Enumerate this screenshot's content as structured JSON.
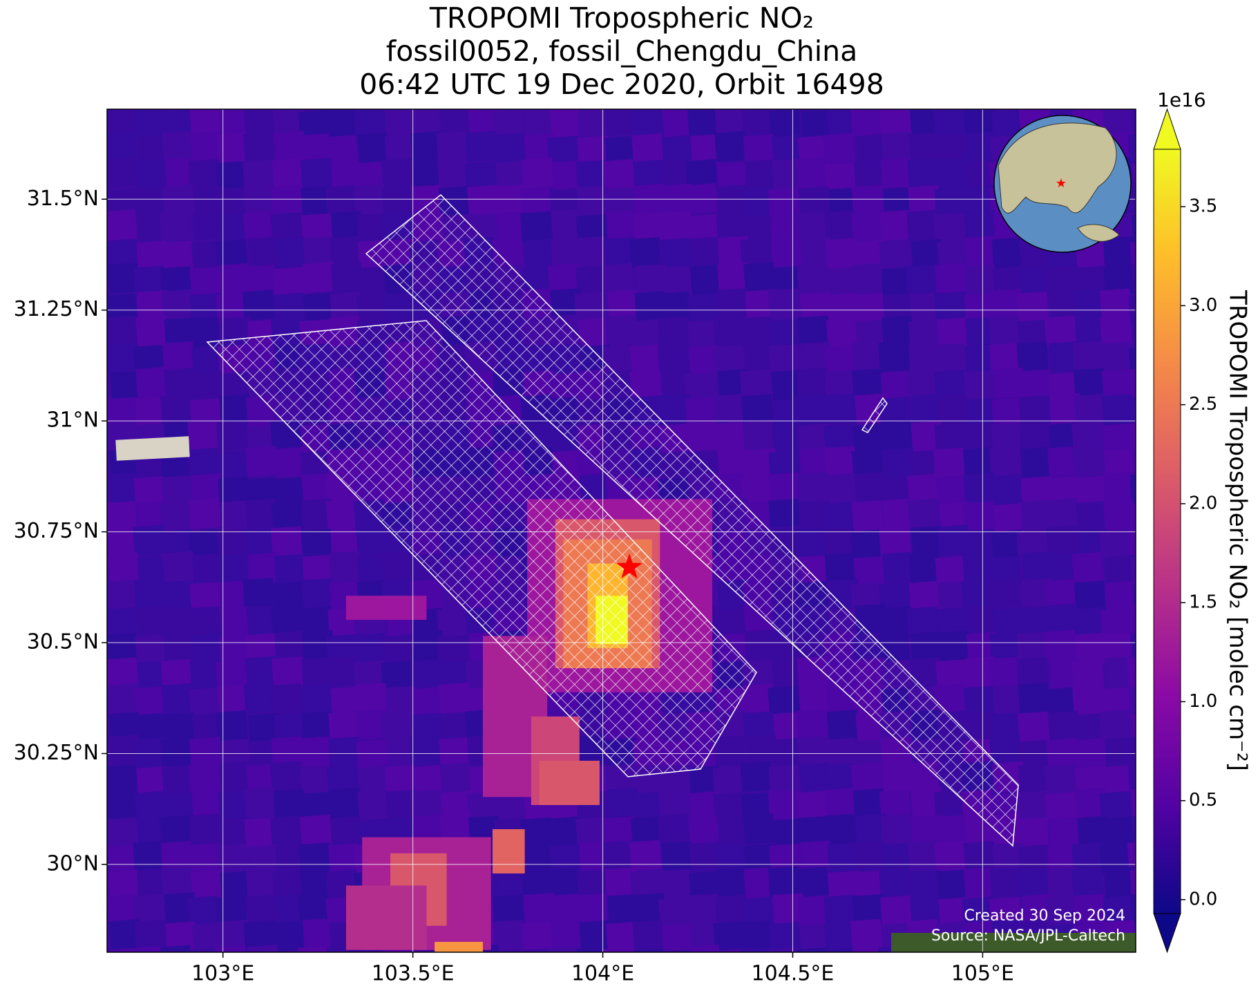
{
  "chart_data": {
    "type": "map",
    "title": [
      "TROPOMI Tropospheric NO₂",
      "fossil0052, fossil_Chengdu_China",
      "06:42 UTC 19 Dec 2020, Orbit 16498"
    ],
    "xlim": [
      102.695,
      105.403
    ],
    "ylim": [
      29.802,
      31.703
    ],
    "xticks": [
      {
        "value": 103,
        "label": "103°E"
      },
      {
        "value": 103.5,
        "label": "103.5°E"
      },
      {
        "value": 104,
        "label": "104°E"
      },
      {
        "value": 104.5,
        "label": "104.5°E"
      },
      {
        "value": 105,
        "label": "105°E"
      }
    ],
    "yticks": [
      {
        "value": 30,
        "label": "30°N"
      },
      {
        "value": 30.25,
        "label": "30.25°N"
      },
      {
        "value": 30.5,
        "label": "30.5°N"
      },
      {
        "value": 30.75,
        "label": "30.75°N"
      },
      {
        "value": 31,
        "label": "31°N"
      },
      {
        "value": 31.25,
        "label": "31.25°N"
      },
      {
        "value": 31.5,
        "label": "31.5°N"
      }
    ],
    "grid": true,
    "marker": {
      "lon": 104.07,
      "lat": 30.67,
      "color": "#ff0000"
    },
    "colorbar": {
      "label": "TROPOMI Tropospheric NO₂ [molec cm⁻²]",
      "multiplier": "1e16",
      "colormap": "plasma",
      "extend": "both",
      "lim": [
        -0.07,
        3.79
      ],
      "ticks": [
        {
          "value": 0,
          "label": "0.0"
        },
        0.5,
        {
          "value": 1,
          "label": "1.0"
        },
        1.5,
        {
          "value": 2,
          "label": "2.0"
        },
        2.5,
        {
          "value": 3,
          "label": "3.0"
        },
        3.5
      ]
    },
    "credits": [
      "Created 30 Sep 2024",
      "Source: NASA/JPL-Caltech"
    ]
  }
}
